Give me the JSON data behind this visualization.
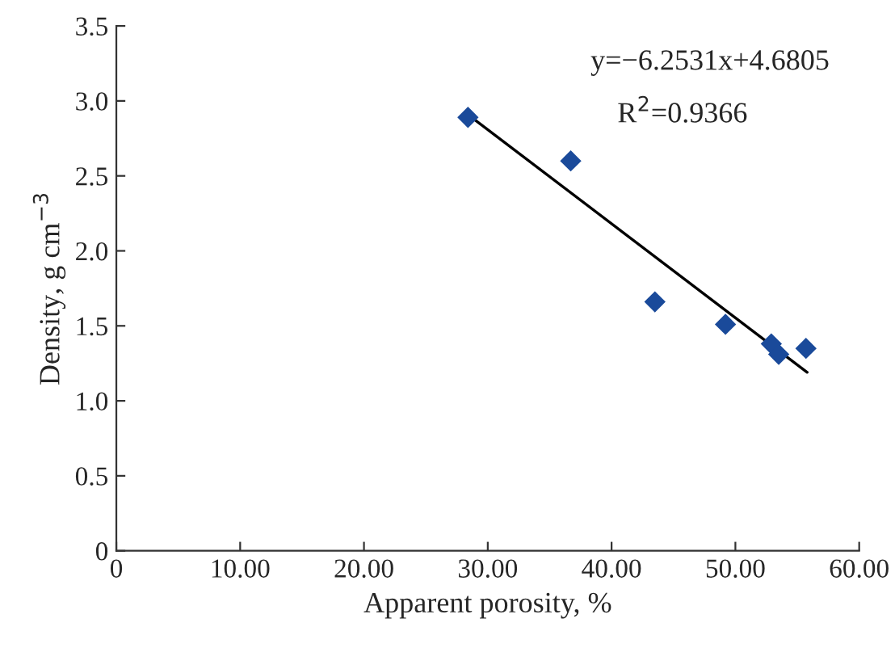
{
  "chart_data": {
    "type": "scatter",
    "xlabel": "Apparent porosity, %",
    "ylabel": "Density, g cm$^{−3}$",
    "marker": "diamond",
    "grid": false,
    "legend": false,
    "xlim": [
      0,
      60
    ],
    "xticks": [
      {
        "value": 0,
        "label": "0"
      },
      {
        "value": 10,
        "label": "10.00"
      },
      {
        "value": 20,
        "label": "20.00"
      },
      {
        "value": 30,
        "label": "30.00"
      },
      {
        "value": 40,
        "label": "40.00"
      },
      {
        "value": 50,
        "label": "50.00"
      },
      {
        "value": 60,
        "label": "60.00"
      }
    ],
    "ylim": [
      0,
      3.5
    ],
    "yticks": [
      {
        "value": 0,
        "label": "0"
      },
      {
        "value": 0.5,
        "label": "0.5"
      },
      {
        "value": 1,
        "label": "1.0"
      },
      {
        "value": 1.5,
        "label": "1.5"
      },
      {
        "value": 2,
        "label": "2.0"
      },
      {
        "value": 2.5,
        "label": "2.5"
      },
      {
        "value": 3,
        "label": "3.0"
      },
      {
        "value": 3.5,
        "label": "3.5"
      }
    ],
    "series": [
      {
        "color": "#1a4a9a",
        "x": [
          28.4,
          36.7,
          43.5,
          49.2,
          52.9,
          53.5,
          55.7
        ],
        "values": [
          2.89,
          2.6,
          1.66,
          1.51,
          1.38,
          1.31,
          1.35
        ]
      },
      {
        "type": "line",
        "color": "#000000",
        "marker": "none",
        "x": [
          28.7,
          55.8
        ],
        "values": [
          2.89,
          1.19
        ]
      }
    ],
    "annotations": [
      "y=−6.2531x+4.6805",
      "R$^{2}$=0.9366"
    ]
  }
}
